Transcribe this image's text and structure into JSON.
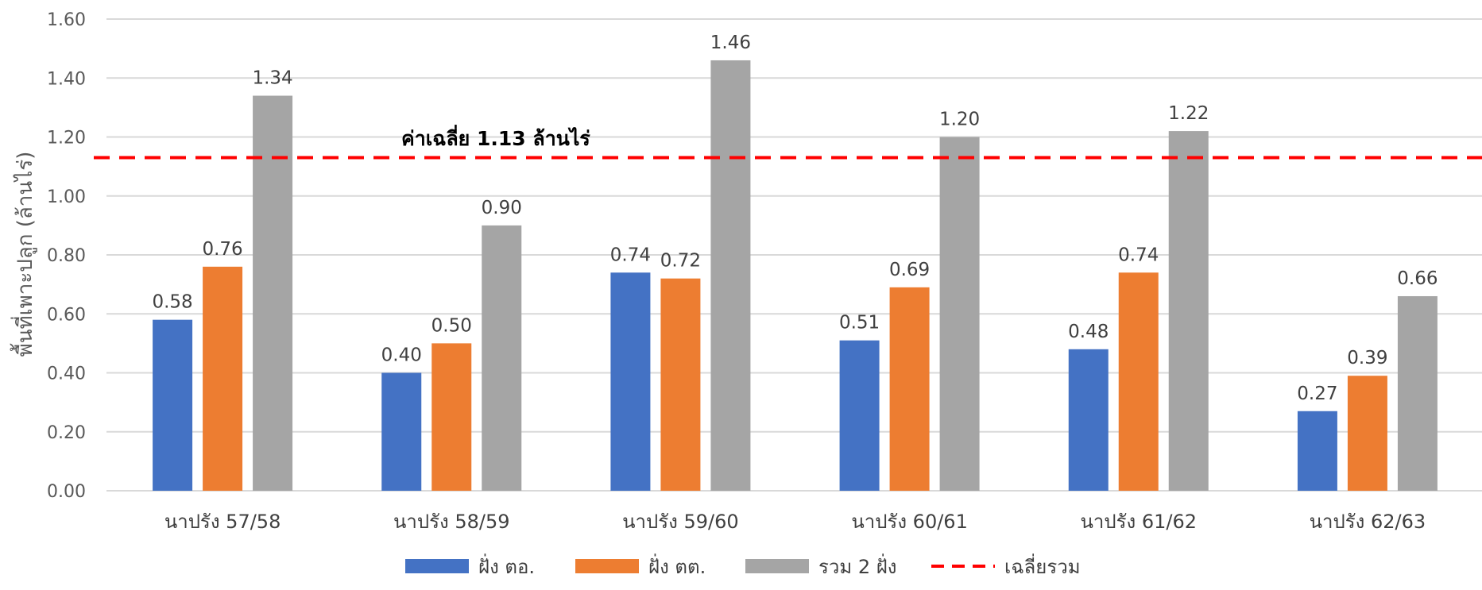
{
  "chart_data": {
    "type": "bar",
    "ylabel": "พื้นที่เพาะปลูก (ล้านไร่)",
    "ylim": [
      0,
      1.6
    ],
    "ytick_step": 0.2,
    "grid": true,
    "legend_placement": "bottom",
    "categories": [
      "นาปรัง 57/58",
      "นาปรัง 58/59",
      "นาปรัง 59/60",
      "นาปรัง 60/61",
      "นาปรัง 61/62",
      "นาปรัง 62/63"
    ],
    "series": [
      {
        "name": "ฝั่ง ตอ.",
        "color": "#4472C4",
        "values": [
          0.58,
          0.4,
          0.74,
          0.51,
          0.48,
          0.27
        ],
        "labels": [
          "0.58",
          "0.40",
          "0.74",
          "0.51",
          "0.48",
          "0.27"
        ]
      },
      {
        "name": "ฝั่ง ตต.",
        "color": "#ED7D31",
        "values": [
          0.76,
          0.5,
          0.72,
          0.69,
          0.74,
          0.39
        ],
        "labels": [
          "0.76",
          "0.50",
          "0.72",
          "0.69",
          "0.74",
          "0.39"
        ]
      },
      {
        "name": "รวม 2 ฝั่ง",
        "color": "#A5A5A5",
        "values": [
          1.34,
          0.9,
          1.46,
          1.2,
          1.22,
          0.66
        ],
        "labels": [
          "1.34",
          "0.90",
          "1.46",
          "1.20",
          "1.22",
          "0.66"
        ]
      }
    ],
    "average_line": {
      "name": "เฉลี่ยรวม",
      "value": 1.13,
      "color": "#FF0000",
      "style": "dashed"
    },
    "annotation": "ค่าเฉลี่ย 1.13 ล้านไร่"
  }
}
